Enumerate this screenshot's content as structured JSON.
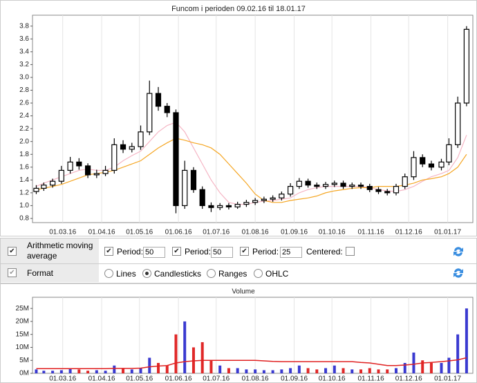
{
  "chart_data": {
    "type": "candlestick",
    "title": "Funcom i perioden 09.02.16 til 18.01.17",
    "x": [
      "09.02.16",
      "15.02.16",
      "22.02.16",
      "29.02.16",
      "07.03.16",
      "14.03.16",
      "21.03.16",
      "28.03.16",
      "04.04.16",
      "11.04.16",
      "18.04.16",
      "25.04.16",
      "02.05.16",
      "09.05.16",
      "16.05.16",
      "23.05.16",
      "30.05.16",
      "06.06.16",
      "13.06.16",
      "20.06.16",
      "27.06.16",
      "04.07.16",
      "11.07.16",
      "18.07.16",
      "25.07.16",
      "01.08.16",
      "08.08.16",
      "15.08.16",
      "22.08.16",
      "29.08.16",
      "05.09.16",
      "12.09.16",
      "19.09.16",
      "26.09.16",
      "03.10.16",
      "10.10.16",
      "17.10.16",
      "24.10.16",
      "31.10.16",
      "07.11.16",
      "14.11.16",
      "21.11.16",
      "28.11.16",
      "05.12.16",
      "12.12.16",
      "19.12.16",
      "27.12.16",
      "02.01.17",
      "09.01.17",
      "16.01.17"
    ],
    "open": [
      1.22,
      1.27,
      1.32,
      1.38,
      1.55,
      1.68,
      1.62,
      1.48,
      1.5,
      1.55,
      1.95,
      1.88,
      1.92,
      2.15,
      2.75,
      2.55,
      2.45,
      1.0,
      1.55,
      1.25,
      1.0,
      0.97,
      1.0,
      0.98,
      1.02,
      1.05,
      1.08,
      1.1,
      1.12,
      1.18,
      1.3,
      1.38,
      1.32,
      1.3,
      1.33,
      1.35,
      1.3,
      1.32,
      1.3,
      1.25,
      1.22,
      1.2,
      1.3,
      1.45,
      1.75,
      1.65,
      1.6,
      1.68,
      1.95,
      2.6
    ],
    "high": [
      1.32,
      1.36,
      1.42,
      1.62,
      1.76,
      1.74,
      1.66,
      1.56,
      1.62,
      2.05,
      2.02,
      1.98,
      2.25,
      2.95,
      2.85,
      2.6,
      2.5,
      1.7,
      1.6,
      1.3,
      1.05,
      1.04,
      1.04,
      1.06,
      1.09,
      1.12,
      1.14,
      1.16,
      1.22,
      1.35,
      1.43,
      1.42,
      1.36,
      1.37,
      1.39,
      1.39,
      1.36,
      1.36,
      1.34,
      1.29,
      1.26,
      1.34,
      1.5,
      1.85,
      1.8,
      1.7,
      1.73,
      2.05,
      2.7,
      3.8
    ],
    "low": [
      1.18,
      1.23,
      1.28,
      1.34,
      1.5,
      1.56,
      1.43,
      1.43,
      1.46,
      1.5,
      1.82,
      1.83,
      1.87,
      2.1,
      2.48,
      2.38,
      0.88,
      0.95,
      1.2,
      0.95,
      0.9,
      0.93,
      0.94,
      0.95,
      0.98,
      1.01,
      1.04,
      1.06,
      1.08,
      1.14,
      1.26,
      1.28,
      1.26,
      1.26,
      1.29,
      1.26,
      1.26,
      1.26,
      1.21,
      1.18,
      1.16,
      1.16,
      1.26,
      1.4,
      1.6,
      1.55,
      1.55,
      1.63,
      1.9,
      2.55
    ],
    "close": [
      1.27,
      1.32,
      1.38,
      1.55,
      1.68,
      1.62,
      1.48,
      1.5,
      1.55,
      1.95,
      1.88,
      1.92,
      2.15,
      2.75,
      2.55,
      2.45,
      1.0,
      1.55,
      1.25,
      1.0,
      0.97,
      1.0,
      0.98,
      1.02,
      1.05,
      1.08,
      1.1,
      1.12,
      1.18,
      1.3,
      1.38,
      1.32,
      1.3,
      1.33,
      1.35,
      1.3,
      1.32,
      1.3,
      1.25,
      1.22,
      1.2,
      1.3,
      1.45,
      1.75,
      1.65,
      1.6,
      1.68,
      1.95,
      2.6,
      3.75
    ],
    "up_color": "#ffffff",
    "down_color": "#000000",
    "series": [
      {
        "color": "#f5b5c4",
        "values": [
          1.3,
          1.35,
          1.4,
          1.45,
          1.5,
          1.55,
          1.57,
          1.55,
          1.55,
          1.6,
          1.7,
          1.78,
          1.85,
          2.0,
          2.15,
          2.25,
          2.3,
          2.15,
          1.9,
          1.65,
          1.4,
          1.2,
          1.05,
          1.02,
          1.02,
          1.05,
          1.07,
          1.08,
          1.1,
          1.12,
          1.2,
          1.25,
          1.28,
          1.3,
          1.3,
          1.3,
          1.3,
          1.3,
          1.28,
          1.25,
          1.23,
          1.22,
          1.25,
          1.3,
          1.38,
          1.45,
          1.5,
          1.55,
          1.75,
          2.1
        ]
      },
      {
        "color": "#f5a623",
        "values": [
          1.25,
          1.27,
          1.3,
          1.33,
          1.38,
          1.43,
          1.48,
          1.5,
          1.52,
          1.55,
          1.6,
          1.65,
          1.7,
          1.8,
          1.9,
          1.98,
          2.05,
          2.02,
          1.98,
          1.95,
          1.9,
          1.8,
          1.65,
          1.5,
          1.35,
          1.18,
          1.08,
          1.05,
          1.05,
          1.08,
          1.1,
          1.12,
          1.15,
          1.2,
          1.23,
          1.25,
          1.27,
          1.28,
          1.28,
          1.3,
          1.3,
          1.3,
          1.32,
          1.35,
          1.4,
          1.42,
          1.45,
          1.5,
          1.6,
          1.8
        ]
      }
    ],
    "xlim": [
      "06.02.16",
      "21.01.17"
    ],
    "xticks": [
      "01.03.16",
      "01.04.16",
      "01.05.16",
      "01.06.16",
      "01.07.16",
      "01.08.16",
      "01.09.16",
      "01.10.16",
      "01.11.16",
      "01.12.16",
      "01.01.17"
    ],
    "ylim": [
      0.735,
      3.97
    ],
    "yticks": [
      0.8,
      {
        "value": 1,
        "label": "1.0"
      },
      1.2,
      1.4,
      1.6,
      1.8,
      {
        "value": 2,
        "label": "2.0"
      },
      2.2,
      2.4,
      2.6,
      2.8,
      {
        "value": 3,
        "label": "3.0"
      },
      3.2,
      3.4,
      3.6,
      3.8
    ],
    "grid": true,
    "volume": {
      "title": "Volume",
      "up_color": "#3a3ad0",
      "down_color": "#e02828",
      "values": [
        1.5,
        1,
        1,
        1.2,
        2,
        1.5,
        1,
        1.2,
        1,
        3,
        2,
        1.5,
        2,
        6,
        4,
        3,
        15,
        20,
        10,
        12,
        5,
        3,
        2,
        2,
        1.5,
        1.5,
        1.2,
        1.2,
        1.5,
        2,
        3,
        2,
        1.5,
        2,
        3,
        2,
        1.5,
        1.5,
        2,
        1.5,
        1.5,
        2,
        4,
        8,
        5,
        4,
        4,
        6,
        15,
        25
      ],
      "ma": {
        "color": "#e02020",
        "values": [
          1.8,
          1.8,
          1.8,
          1.8,
          1.8,
          1.8,
          1.8,
          1.8,
          1.8,
          1.9,
          1.9,
          1.9,
          2,
          2.5,
          2.8,
          3,
          4,
          4.5,
          4.8,
          5,
          5,
          5,
          5,
          5,
          5,
          5,
          4.8,
          4.6,
          4.5,
          4.5,
          4.5,
          4.5,
          4.5,
          4.5,
          4.5,
          4.5,
          4.5,
          4.2,
          4,
          3.5,
          3,
          3,
          3.2,
          3.5,
          4,
          4.2,
          4.5,
          4.8,
          5.2,
          6
        ]
      },
      "ylim": [
        0,
        29.3
      ],
      "yticks": [
        {
          "value": 0,
          "label": "0M"
        },
        {
          "value": 5,
          "label": "5M"
        },
        {
          "value": 10,
          "label": "10M"
        },
        {
          "value": 15,
          "label": "15M"
        },
        {
          "value": 20,
          "label": "20M"
        },
        {
          "value": 25,
          "label": "25M"
        }
      ]
    }
  },
  "controls": {
    "moving_average": {
      "label": "Arithmetic moving average",
      "period_label": "Period:",
      "periods": [
        50,
        50,
        25
      ],
      "centered_label": "Centered:"
    },
    "format": {
      "label": "Format",
      "options": [
        "Lines",
        "Candlesticks",
        "Ranges",
        "OHLC"
      ]
    }
  }
}
